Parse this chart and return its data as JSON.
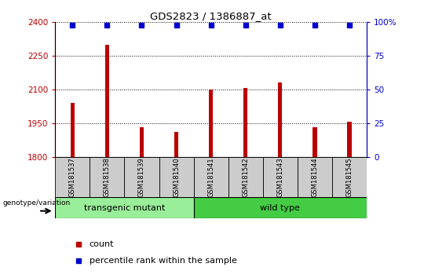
{
  "title": "GDS2823 / 1386887_at",
  "samples": [
    "GSM181537",
    "GSM181538",
    "GSM181539",
    "GSM181540",
    "GSM181541",
    "GSM181542",
    "GSM181543",
    "GSM181544",
    "GSM181545"
  ],
  "counts": [
    2042,
    2300,
    1932,
    1912,
    2102,
    2108,
    2132,
    1932,
    1957
  ],
  "percentile_ranks": [
    98,
    98,
    98,
    98,
    98,
    98,
    98,
    98,
    98
  ],
  "ylim_left": [
    1800,
    2400
  ],
  "ylim_right": [
    0,
    100
  ],
  "yticks_left": [
    1800,
    1950,
    2100,
    2250,
    2400
  ],
  "yticks_right": [
    0,
    25,
    50,
    75,
    100
  ],
  "bar_color": "#bb0000",
  "percentile_color": "#0000cc",
  "grid_color": "#000000",
  "n_transgenic": 4,
  "transgenic_label": "transgenic mutant",
  "wildtype_label": "wild type",
  "transgenic_color": "#99ee99",
  "wildtype_color": "#44cc44",
  "group_bg_color": "#cccccc",
  "legend_count_label": "count",
  "legend_percentile_label": "percentile rank within the sample",
  "genotype_label": "genotype/variation",
  "bar_width": 0.12
}
